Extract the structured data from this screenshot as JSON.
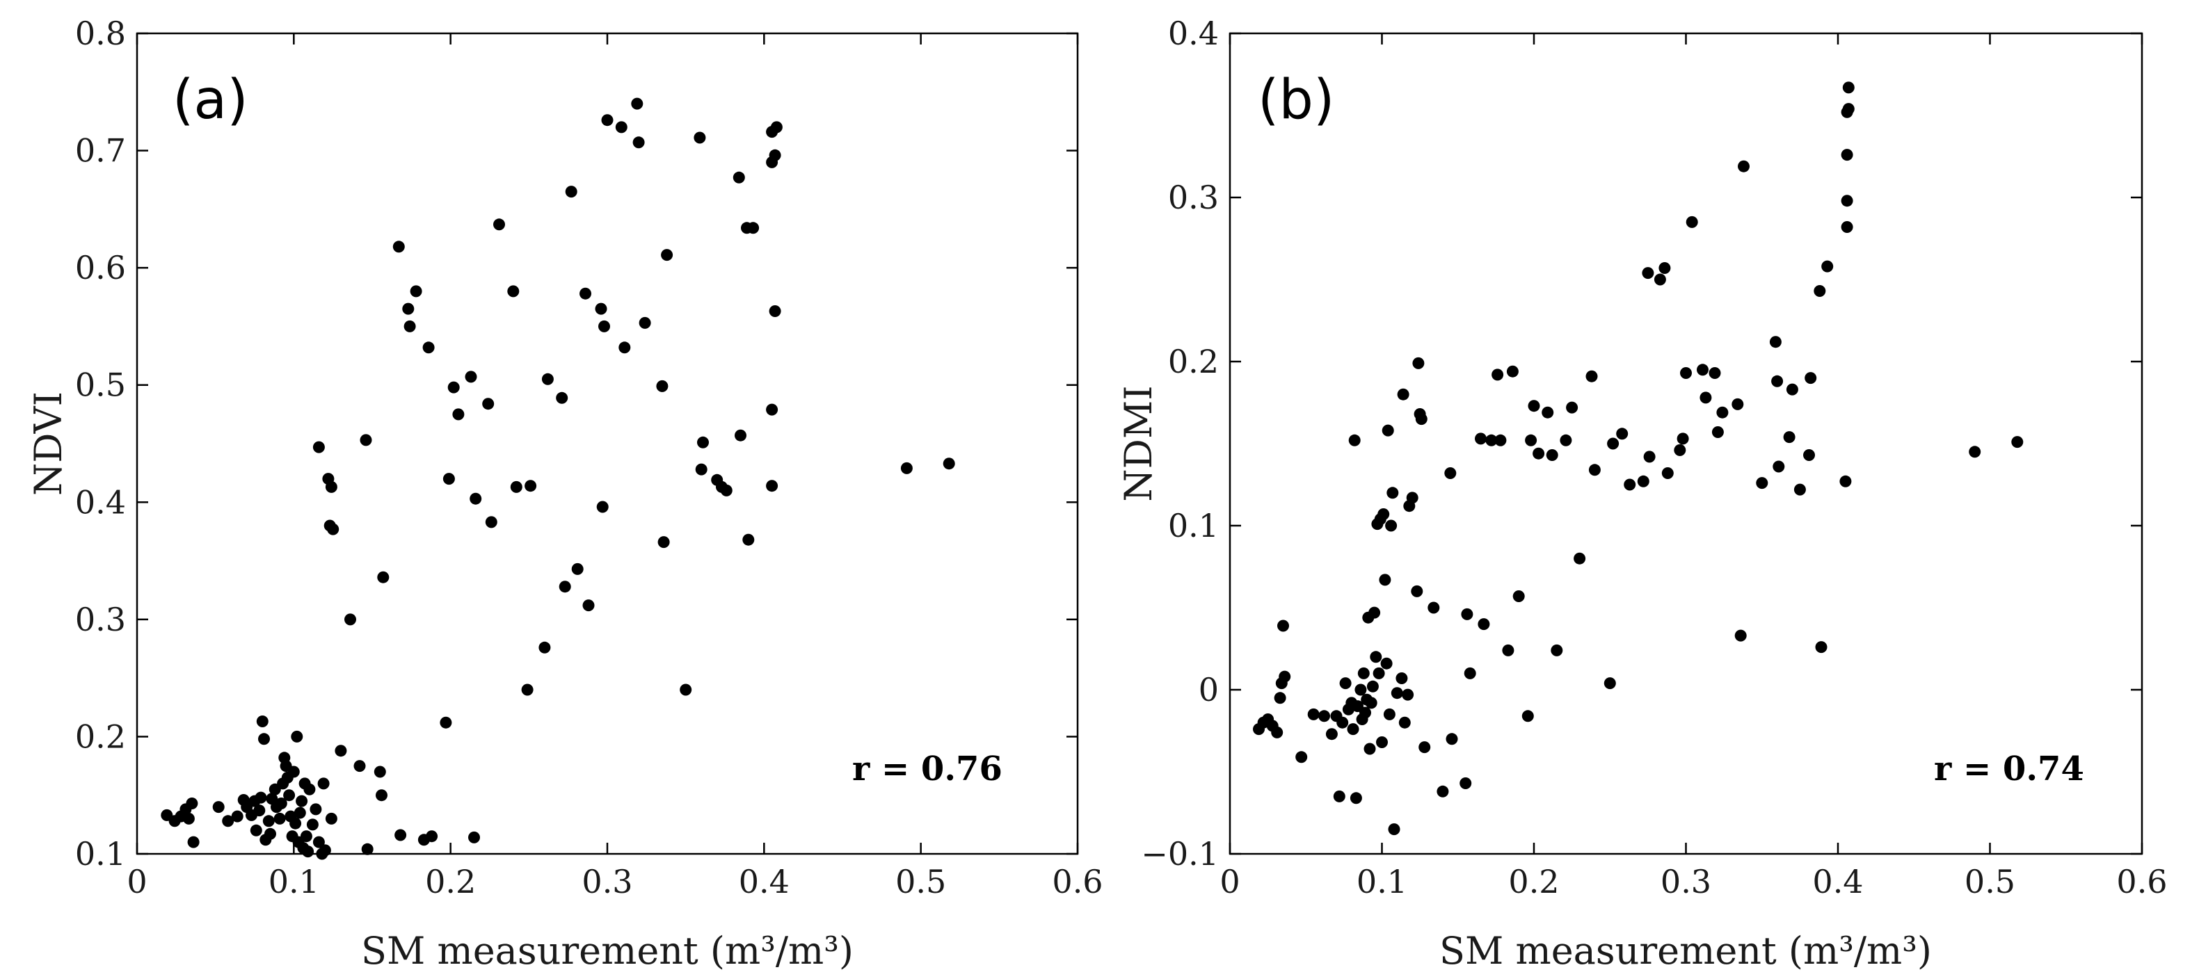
{
  "chart_data": [
    {
      "type": "scatter",
      "panel_label": "(a)",
      "xlabel": "SM measurement  (m³/m³)",
      "ylabel": "NDVI",
      "xlim": [
        0,
        0.6
      ],
      "ylim": [
        0.1,
        0.8
      ],
      "xticks": [
        0,
        0.1,
        0.2,
        0.3,
        0.4,
        0.5,
        0.6
      ],
      "yticks": [
        0.1,
        0.2,
        0.3,
        0.4,
        0.5,
        0.6,
        0.7,
        0.8
      ],
      "xtick_labels": [
        "0",
        "0.1",
        "0.2",
        "0.3",
        "0.4",
        "0.5",
        "0.6"
      ],
      "ytick_labels": [
        "0.1",
        "0.2",
        "0.3",
        "0.4",
        "0.5",
        "0.6",
        "0.7",
        "0.8"
      ],
      "annotation": "r = 0.76",
      "annotation_position": "bottom-right",
      "points": [
        [
          0.019,
          0.133
        ],
        [
          0.024,
          0.128
        ],
        [
          0.028,
          0.132
        ],
        [
          0.031,
          0.138
        ],
        [
          0.033,
          0.13
        ],
        [
          0.035,
          0.143
        ],
        [
          0.036,
          0.11
        ],
        [
          0.052,
          0.14
        ],
        [
          0.058,
          0.128
        ],
        [
          0.064,
          0.132
        ],
        [
          0.068,
          0.146
        ],
        [
          0.07,
          0.14
        ],
        [
          0.073,
          0.133
        ],
        [
          0.075,
          0.145
        ],
        [
          0.076,
          0.12
        ],
        [
          0.078,
          0.137
        ],
        [
          0.079,
          0.148
        ],
        [
          0.08,
          0.213
        ],
        [
          0.081,
          0.198
        ],
        [
          0.082,
          0.112
        ],
        [
          0.084,
          0.128
        ],
        [
          0.085,
          0.117
        ],
        [
          0.086,
          0.147
        ],
        [
          0.088,
          0.155
        ],
        [
          0.089,
          0.14
        ],
        [
          0.091,
          0.13
        ],
        [
          0.092,
          0.143
        ],
        [
          0.093,
          0.16
        ],
        [
          0.094,
          0.182
        ],
        [
          0.095,
          0.175
        ],
        [
          0.096,
          0.165
        ],
        [
          0.097,
          0.15
        ],
        [
          0.098,
          0.132
        ],
        [
          0.099,
          0.115
        ],
        [
          0.1,
          0.17
        ],
        [
          0.101,
          0.126
        ],
        [
          0.102,
          0.2
        ],
        [
          0.103,
          0.11
        ],
        [
          0.104,
          0.135
        ],
        [
          0.105,
          0.145
        ],
        [
          0.106,
          0.105
        ],
        [
          0.107,
          0.16
        ],
        [
          0.108,
          0.115
        ],
        [
          0.109,
          0.102
        ],
        [
          0.11,
          0.155
        ],
        [
          0.112,
          0.125
        ],
        [
          0.114,
          0.138
        ],
        [
          0.116,
          0.11
        ],
        [
          0.118,
          0.1
        ],
        [
          0.119,
          0.16
        ],
        [
          0.12,
          0.103
        ],
        [
          0.124,
          0.13
        ],
        [
          0.13,
          0.188
        ],
        [
          0.142,
          0.175
        ],
        [
          0.147,
          0.104
        ],
        [
          0.155,
          0.17
        ],
        [
          0.156,
          0.15
        ],
        [
          0.168,
          0.116
        ],
        [
          0.183,
          0.112
        ],
        [
          0.188,
          0.115
        ],
        [
          0.215,
          0.114
        ],
        [
          0.116,
          0.447
        ],
        [
          0.122,
          0.42
        ],
        [
          0.123,
          0.38
        ],
        [
          0.124,
          0.413
        ],
        [
          0.125,
          0.377
        ],
        [
          0.136,
          0.3
        ],
        [
          0.146,
          0.453
        ],
        [
          0.157,
          0.336
        ],
        [
          0.167,
          0.618
        ],
        [
          0.173,
          0.565
        ],
        [
          0.174,
          0.55
        ],
        [
          0.178,
          0.58
        ],
        [
          0.186,
          0.532
        ],
        [
          0.197,
          0.212
        ],
        [
          0.199,
          0.42
        ],
        [
          0.202,
          0.498
        ],
        [
          0.205,
          0.475
        ],
        [
          0.213,
          0.507
        ],
        [
          0.216,
          0.403
        ],
        [
          0.224,
          0.484
        ],
        [
          0.226,
          0.383
        ],
        [
          0.231,
          0.637
        ],
        [
          0.24,
          0.58
        ],
        [
          0.242,
          0.413
        ],
        [
          0.249,
          0.24
        ],
        [
          0.251,
          0.414
        ],
        [
          0.26,
          0.276
        ],
        [
          0.262,
          0.505
        ],
        [
          0.271,
          0.489
        ],
        [
          0.273,
          0.328
        ],
        [
          0.277,
          0.665
        ],
        [
          0.281,
          0.343
        ],
        [
          0.286,
          0.578
        ],
        [
          0.288,
          0.312
        ],
        [
          0.296,
          0.565
        ],
        [
          0.297,
          0.396
        ],
        [
          0.298,
          0.55
        ],
        [
          0.3,
          0.726
        ],
        [
          0.309,
          0.72
        ],
        [
          0.311,
          0.532
        ],
        [
          0.319,
          0.74
        ],
        [
          0.32,
          0.707
        ],
        [
          0.324,
          0.553
        ],
        [
          0.335,
          0.499
        ],
        [
          0.336,
          0.366
        ],
        [
          0.338,
          0.611
        ],
        [
          0.35,
          0.24
        ],
        [
          0.359,
          0.711
        ],
        [
          0.36,
          0.428
        ],
        [
          0.361,
          0.451
        ],
        [
          0.37,
          0.419
        ],
        [
          0.373,
          0.413
        ],
        [
          0.376,
          0.41
        ],
        [
          0.384,
          0.677
        ],
        [
          0.385,
          0.457
        ],
        [
          0.389,
          0.634
        ],
        [
          0.39,
          0.368
        ],
        [
          0.393,
          0.634
        ],
        [
          0.405,
          0.414
        ],
        [
          0.405,
          0.479
        ],
        [
          0.405,
          0.69
        ],
        [
          0.405,
          0.716
        ],
        [
          0.407,
          0.696
        ],
        [
          0.407,
          0.563
        ],
        [
          0.408,
          0.72
        ],
        [
          0.491,
          0.429
        ],
        [
          0.518,
          0.433
        ]
      ]
    },
    {
      "type": "scatter",
      "panel_label": "(b)",
      "xlabel": "SM measurement  (m³/m³)",
      "ylabel": "NDMI",
      "xlim": [
        0,
        0.6
      ],
      "ylim": [
        -0.1,
        0.4
      ],
      "xticks": [
        0,
        0.1,
        0.2,
        0.3,
        0.4,
        0.5,
        0.6
      ],
      "yticks": [
        -0.1,
        0,
        0.1,
        0.2,
        0.3,
        0.4
      ],
      "xtick_labels": [
        "0",
        "0.1",
        "0.2",
        "0.3",
        "0.4",
        "0.5",
        "0.6"
      ],
      "ytick_labels": [
        "−0.1",
        "0",
        "0.1",
        "0.2",
        "0.3",
        "0.4"
      ],
      "annotation": "r = 0.74",
      "annotation_position": "bottom-right",
      "points": [
        [
          0.019,
          -0.024
        ],
        [
          0.022,
          -0.02
        ],
        [
          0.025,
          -0.018
        ],
        [
          0.028,
          -0.022
        ],
        [
          0.031,
          -0.026
        ],
        [
          0.033,
          -0.005
        ],
        [
          0.034,
          0.004
        ],
        [
          0.035,
          0.039
        ],
        [
          0.036,
          0.008
        ],
        [
          0.047,
          -0.041
        ],
        [
          0.055,
          -0.015
        ],
        [
          0.062,
          -0.016
        ],
        [
          0.067,
          -0.027
        ],
        [
          0.07,
          -0.016
        ],
        [
          0.072,
          -0.065
        ],
        [
          0.074,
          -0.02
        ],
        [
          0.076,
          0.004
        ],
        [
          0.078,
          -0.012
        ],
        [
          0.08,
          -0.008
        ],
        [
          0.081,
          -0.024
        ],
        [
          0.082,
          0.152
        ],
        [
          0.083,
          -0.066
        ],
        [
          0.084,
          -0.01
        ],
        [
          0.086,
          0.0
        ],
        [
          0.087,
          -0.018
        ],
        [
          0.088,
          0.01
        ],
        [
          0.089,
          -0.014
        ],
        [
          0.09,
          -0.006
        ],
        [
          0.091,
          0.044
        ],
        [
          0.092,
          -0.036
        ],
        [
          0.093,
          -0.008
        ],
        [
          0.094,
          0.002
        ],
        [
          0.095,
          0.047
        ],
        [
          0.096,
          0.02
        ],
        [
          0.097,
          0.101
        ],
        [
          0.098,
          0.01
        ],
        [
          0.099,
          0.104
        ],
        [
          0.1,
          -0.032
        ],
        [
          0.101,
          0.107
        ],
        [
          0.102,
          0.067
        ],
        [
          0.103,
          0.016
        ],
        [
          0.104,
          0.158
        ],
        [
          0.105,
          -0.015
        ],
        [
          0.106,
          0.1
        ],
        [
          0.107,
          0.12
        ],
        [
          0.108,
          -0.085
        ],
        [
          0.11,
          -0.002
        ],
        [
          0.113,
          0.007
        ],
        [
          0.114,
          0.18
        ],
        [
          0.115,
          -0.02
        ],
        [
          0.117,
          -0.003
        ],
        [
          0.118,
          0.112
        ],
        [
          0.12,
          0.117
        ],
        [
          0.123,
          0.06
        ],
        [
          0.124,
          0.199
        ],
        [
          0.125,
          0.168
        ],
        [
          0.126,
          0.165
        ],
        [
          0.128,
          -0.035
        ],
        [
          0.134,
          0.05
        ],
        [
          0.14,
          -0.062
        ],
        [
          0.145,
          0.132
        ],
        [
          0.146,
          -0.03
        ],
        [
          0.155,
          -0.057
        ],
        [
          0.156,
          0.046
        ],
        [
          0.158,
          0.01
        ],
        [
          0.165,
          0.153
        ],
        [
          0.167,
          0.04
        ],
        [
          0.172,
          0.152
        ],
        [
          0.176,
          0.192
        ],
        [
          0.178,
          0.152
        ],
        [
          0.183,
          0.024
        ],
        [
          0.186,
          0.194
        ],
        [
          0.19,
          0.057
        ],
        [
          0.196,
          -0.016
        ],
        [
          0.198,
          0.152
        ],
        [
          0.2,
          0.173
        ],
        [
          0.203,
          0.144
        ],
        [
          0.209,
          0.169
        ],
        [
          0.212,
          0.143
        ],
        [
          0.215,
          0.024
        ],
        [
          0.221,
          0.152
        ],
        [
          0.225,
          0.172
        ],
        [
          0.23,
          0.08
        ],
        [
          0.238,
          0.191
        ],
        [
          0.24,
          0.134
        ],
        [
          0.25,
          0.004
        ],
        [
          0.252,
          0.15
        ],
        [
          0.258,
          0.156
        ],
        [
          0.263,
          0.125
        ],
        [
          0.272,
          0.127
        ],
        [
          0.275,
          0.254
        ],
        [
          0.276,
          0.142
        ],
        [
          0.283,
          0.25
        ],
        [
          0.286,
          0.257
        ],
        [
          0.288,
          0.132
        ],
        [
          0.296,
          0.146
        ],
        [
          0.298,
          0.153
        ],
        [
          0.3,
          0.193
        ],
        [
          0.304,
          0.285
        ],
        [
          0.311,
          0.195
        ],
        [
          0.313,
          0.178
        ],
        [
          0.319,
          0.193
        ],
        [
          0.321,
          0.157
        ],
        [
          0.324,
          0.169
        ],
        [
          0.334,
          0.174
        ],
        [
          0.336,
          0.033
        ],
        [
          0.338,
          0.319
        ],
        [
          0.35,
          0.126
        ],
        [
          0.359,
          0.212
        ],
        [
          0.36,
          0.188
        ],
        [
          0.361,
          0.136
        ],
        [
          0.368,
          0.154
        ],
        [
          0.37,
          0.183
        ],
        [
          0.375,
          0.122
        ],
        [
          0.381,
          0.143
        ],
        [
          0.382,
          0.19
        ],
        [
          0.388,
          0.243
        ],
        [
          0.389,
          0.026
        ],
        [
          0.393,
          0.258
        ],
        [
          0.405,
          0.127
        ],
        [
          0.406,
          0.282
        ],
        [
          0.406,
          0.298
        ],
        [
          0.406,
          0.326
        ],
        [
          0.406,
          0.352
        ],
        [
          0.407,
          0.354
        ],
        [
          0.407,
          0.367
        ],
        [
          0.49,
          0.145
        ],
        [
          0.518,
          0.151
        ]
      ]
    }
  ]
}
